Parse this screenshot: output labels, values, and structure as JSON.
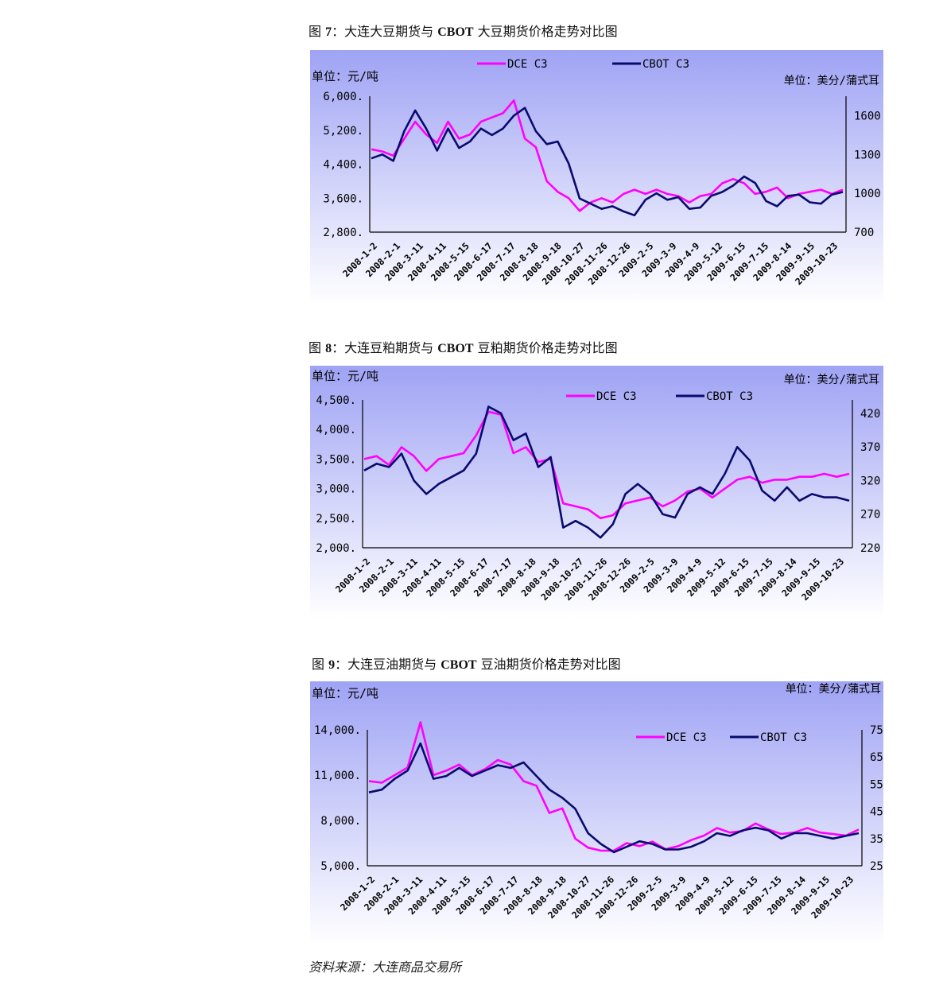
{
  "figures": [
    {
      "caption": {
        "prefix": "图",
        "num": "7",
        "text": "：大连大豆期货与",
        "bold": "CBOT",
        "suffix": "大豆期货价格走势对比图"
      },
      "chart_data": {
        "type": "line",
        "title": "",
        "y_left_unit": "单位：元/吨",
        "y_right_unit": "单位：美分/蒲式耳",
        "y_left_ticks": [
          "6,000.",
          "5,200.",
          "4,400.",
          "3,600.",
          "2,800."
        ],
        "y_left_range": [
          2800,
          6000
        ],
        "y_right_ticks": [
          "1600",
          "1300",
          "1000",
          "700"
        ],
        "y_right_range": [
          700,
          1750
        ],
        "x_ticks": [
          "2008-1-2",
          "2008-2-1",
          "2008-3-11",
          "2008-4-11",
          "2008-5-15",
          "2008-6-17",
          "2008-7-17",
          "2008-8-18",
          "2008-9-18",
          "2008-10-27",
          "2008-11-26",
          "2008-12-26",
          "2009-2-5",
          "2009-3-9",
          "2009-4-9",
          "2009-5-12",
          "2009-6-15",
          "2009-7-15",
          "2009-8-14",
          "2009-9-15",
          "2009-10-23"
        ],
        "series": [
          {
            "name": "DCE C3",
            "axis": "left",
            "color": "#ff00ff",
            "values": [
              4750,
              4700,
              4600,
              5000,
              5400,
              5100,
              4900,
              5400,
              5000,
              5100,
              5400,
              5500,
              5600,
              5900,
              5000,
              4800,
              4000,
              3750,
              3600,
              3300,
              3500,
              3600,
              3500,
              3700,
              3800,
              3700,
              3800,
              3700,
              3650,
              3500,
              3650,
              3700,
              3950,
              4050,
              3950,
              3700,
              3750,
              3850,
              3600,
              3700,
              3750,
              3800,
              3700,
              3800
            ]
          },
          {
            "name": "CBOT C3",
            "axis": "right",
            "color": "#0a0a6e",
            "values": [
              1270,
              1300,
              1250,
              1480,
              1640,
              1500,
              1330,
              1500,
              1350,
              1400,
              1500,
              1450,
              1500,
              1600,
              1660,
              1480,
              1380,
              1400,
              1230,
              960,
              920,
              880,
              900,
              860,
              830,
              950,
              1000,
              950,
              970,
              880,
              890,
              980,
              1010,
              1060,
              1130,
              1080,
              940,
              900,
              980,
              990,
              930,
              920,
              990,
              1010
            ]
          }
        ]
      }
    },
    {
      "caption": {
        "prefix": "图",
        "num": "8",
        "text": "：大连豆粕期货与",
        "bold": "CBOT",
        "suffix": "豆粕期货价格走势对比图"
      },
      "chart_data": {
        "type": "line",
        "title": "",
        "y_left_unit": "单位：元/吨",
        "y_right_unit": "单位：美分/蒲式耳",
        "y_left_ticks": [
          "4,500.",
          "4,000.",
          "3,500.",
          "3,000.",
          "2,500.",
          "2,000."
        ],
        "y_left_range": [
          2000,
          4500
        ],
        "y_right_ticks": [
          "420",
          "370",
          "320",
          "270",
          "220"
        ],
        "y_right_range": [
          220,
          440
        ],
        "x_ticks": [
          "2008-1-2",
          "2008-2-1",
          "2008-3-11",
          "2008-4-11",
          "2008-5-15",
          "2008-6-17",
          "2008-7-17",
          "2008-8-18",
          "2008-9-18",
          "2008-10-27",
          "2008-11-26",
          "2008-12-26",
          "2009-2-5",
          "2009-3-9",
          "2009-4-9",
          "2009-5-12",
          "2009-6-15",
          "2009-7-15",
          "2009-8-14",
          "2009-9-15",
          "2009-10-23"
        ],
        "series": [
          {
            "name": "DCE C3",
            "axis": "left",
            "color": "#ff00ff",
            "values": [
              3500,
              3550,
              3400,
              3700,
              3550,
              3300,
              3500,
              3550,
              3600,
              3900,
              4300,
              4250,
              3600,
              3700,
              3450,
              3500,
              2750,
              2700,
              2650,
              2500,
              2550,
              2750,
              2800,
              2850,
              2700,
              2800,
              2950,
              3000,
              2850,
              3000,
              3150,
              3200,
              3100,
              3150,
              3150,
              3200,
              3200,
              3250,
              3200,
              3250
            ]
          },
          {
            "name": "CBOT C3",
            "axis": "right",
            "color": "#0a0a6e",
            "values": [
              335,
              345,
              340,
              360,
              320,
              300,
              315,
              325,
              335,
              360,
              430,
              420,
              380,
              390,
              340,
              355,
              250,
              260,
              250,
              235,
              255,
              300,
              315,
              300,
              270,
              265,
              300,
              310,
              300,
              330,
              370,
              350,
              305,
              290,
              310,
              290,
              300,
              295,
              295,
              290
            ]
          }
        ]
      }
    },
    {
      "caption": {
        "prefix": "图",
        "num": "9",
        "text": "：大连豆油期货与",
        "bold": "CBOT",
        "suffix": "豆油期货价格走势对比图"
      },
      "chart_data": {
        "type": "line",
        "title": "",
        "y_left_unit": "单位：元/吨",
        "y_right_unit": "单位：美分/蒲式耳",
        "y_left_ticks": [
          "14,000.",
          "11,000.",
          "8,000.",
          "5,000."
        ],
        "y_left_range": [
          5000,
          14000
        ],
        "y_right_ticks": [
          "75",
          "65",
          "55",
          "45",
          "35",
          "25"
        ],
        "y_right_range": [
          25,
          75
        ],
        "x_ticks": [
          "2008-1-2",
          "2008-2-1",
          "2008-3-11",
          "2008-4-11",
          "2008-5-15",
          "2008-6-17",
          "2008-7-17",
          "2008-8-18",
          "2008-9-18",
          "2008-10-27",
          "2008-11-26",
          "2008-12-26",
          "2009-2-5",
          "2009-3-9",
          "2009-4-9",
          "2009-5-12",
          "2009-6-15",
          "2009-7-15",
          "2009-8-14",
          "2009-9-15",
          "2009-10-23"
        ],
        "series": [
          {
            "name": "DCE C3",
            "axis": "left",
            "color": "#ff00ff",
            "values": [
              10600,
              10500,
              11000,
              11500,
              14500,
              11000,
              11300,
              11700,
              11000,
              11400,
              12000,
              11700,
              10600,
              10300,
              8500,
              8800,
              6800,
              6200,
              6000,
              6000,
              6500,
              6300,
              6600,
              6100,
              6300,
              6700,
              7000,
              7500,
              7200,
              7300,
              7800,
              7400,
              7100,
              7200,
              7500,
              7200,
              7100,
              7000,
              7400
            ]
          },
          {
            "name": "CBOT C3",
            "axis": "right",
            "color": "#0a0a6e",
            "values": [
              52,
              53,
              57,
              60,
              70,
              57,
              58,
              61,
              58,
              60,
              62,
              61,
              63,
              58,
              53,
              50,
              46,
              37,
              33,
              30,
              32,
              34,
              33,
              31,
              31,
              32,
              34,
              37,
              36,
              38,
              39,
              38,
              35,
              37,
              37,
              36,
              35,
              36,
              37
            ]
          }
        ]
      }
    }
  ],
  "source_note": "资料来源：大连商品交易所"
}
